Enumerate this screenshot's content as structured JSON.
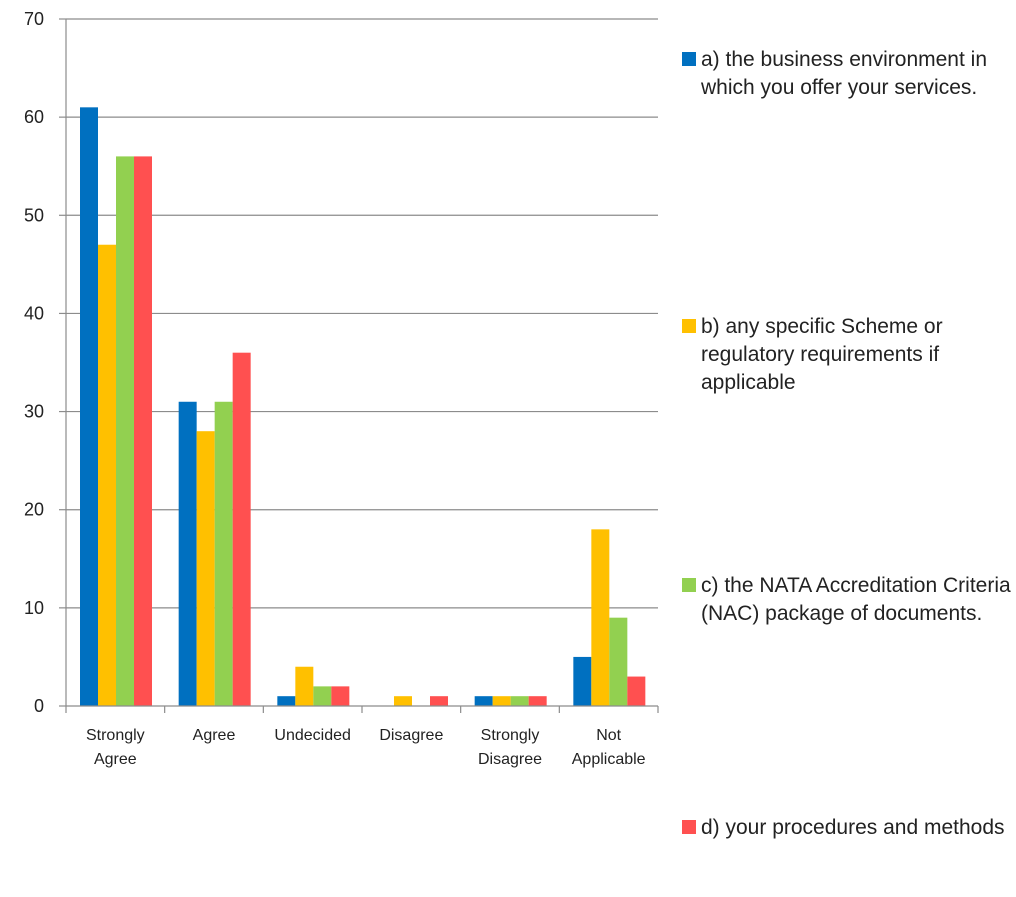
{
  "chart_data": {
    "type": "bar",
    "title": "",
    "xlabel": "",
    "ylabel": "",
    "ylim": [
      0,
      70
    ],
    "yticks": [
      0,
      10,
      20,
      30,
      40,
      50,
      60,
      70
    ],
    "grid": true,
    "legend_position": "right",
    "categories": [
      [
        "Strongly",
        "Agree"
      ],
      [
        "Agree"
      ],
      [
        "Undecided"
      ],
      [
        "Disagree"
      ],
      [
        "Strongly",
        "Disagree"
      ],
      [
        "Not",
        "Applicable"
      ]
    ],
    "series": [
      {
        "name": "a) the business environment in which you offer your services.",
        "color": "#0070C0",
        "values": [
          61,
          31,
          1,
          0,
          1,
          5
        ]
      },
      {
        "name": "b) any specific Scheme or regulatory requirements if applicable",
        "color": "#FFC000",
        "values": [
          47,
          28,
          4,
          1,
          1,
          18
        ]
      },
      {
        "name": "c) the NATA Accreditation Criteria (NAC) package of documents.",
        "color": "#92D050",
        "values": [
          56,
          31,
          2,
          0,
          1,
          9
        ]
      },
      {
        "name": "d) your procedures and methods",
        "color": "#FF5050",
        "values": [
          56,
          36,
          2,
          1,
          1,
          3
        ]
      }
    ]
  }
}
